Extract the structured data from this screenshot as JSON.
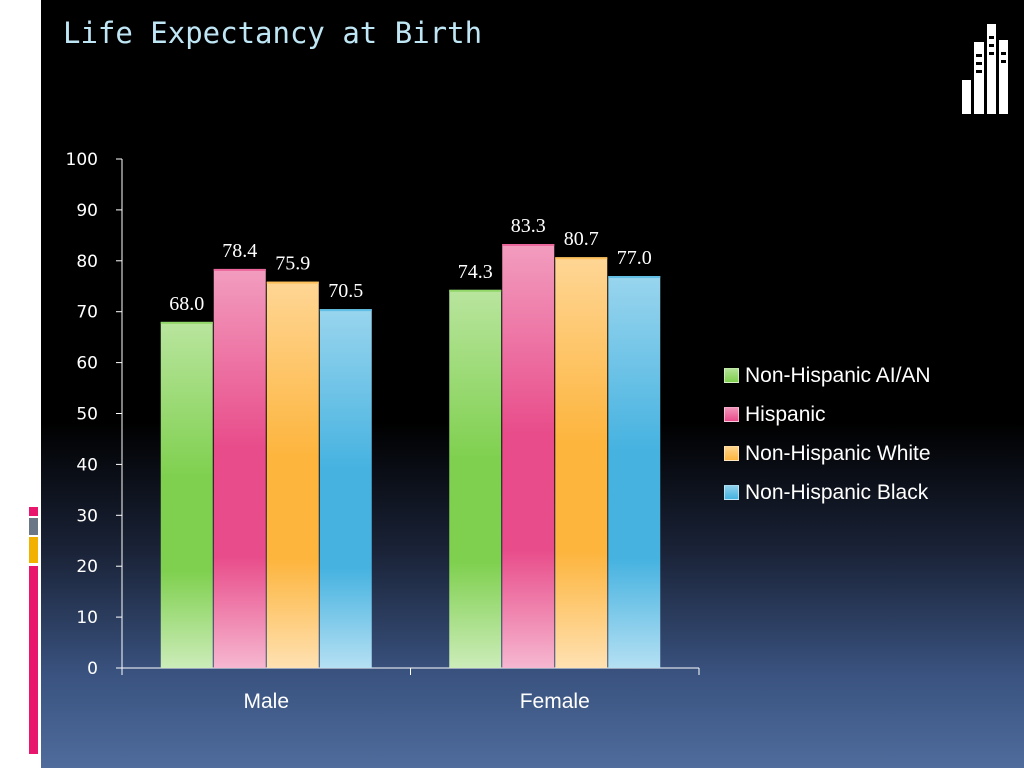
{
  "slide": {
    "title": "Life Expectancy at Birth"
  },
  "colors": {
    "title": "#bfe6f5",
    "accent_pink": "#e8176d",
    "accent_gray": "#6b7687",
    "accent_orange": "#f2b100"
  },
  "chart_data": {
    "type": "bar",
    "title": "",
    "xlabel": "",
    "ylabel": "",
    "categories": [
      "Male",
      "Female"
    ],
    "ylim": [
      0,
      100
    ],
    "yticks": [
      0,
      10,
      20,
      30,
      40,
      50,
      60,
      70,
      80,
      90,
      100
    ],
    "grid": false,
    "legend_position": "right",
    "series": [
      {
        "name": "Non-Hispanic AI/AN",
        "values": [
          68.0,
          74.3
        ],
        "labels": [
          "68.0",
          "74.3"
        ],
        "color": "#7fd04f"
      },
      {
        "name": "Hispanic",
        "values": [
          78.4,
          83.3
        ],
        "labels": [
          "78.4",
          "83.3"
        ],
        "color": "#e84c8a"
      },
      {
        "name": "Non-Hispanic White",
        "values": [
          75.9,
          80.7
        ],
        "labels": [
          "75.9",
          "80.7"
        ],
        "color": "#fdb53e"
      },
      {
        "name": "Non-Hispanic Black",
        "values": [
          70.5,
          77.0
        ],
        "labels": [
          "70.5",
          "77.0"
        ],
        "color": "#45b2e0"
      }
    ]
  }
}
